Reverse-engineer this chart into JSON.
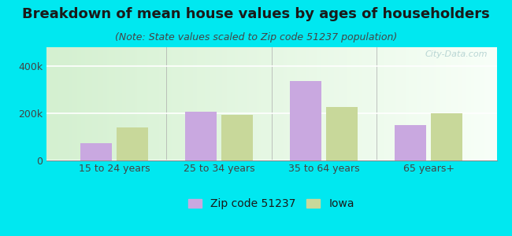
{
  "title": "Breakdown of mean house values by ages of householders",
  "subtitle": "(Note: State values scaled to Zip code 51237 population)",
  "categories": [
    "15 to 24 years",
    "25 to 34 years",
    "35 to 64 years",
    "65 years+"
  ],
  "zip_values": [
    75000,
    207000,
    335000,
    150000
  ],
  "iowa_values": [
    140000,
    192000,
    228000,
    200000
  ],
  "zip_color": "#c9a8e0",
  "iowa_color": "#c8d89a",
  "background_outer": "#00e8f0",
  "background_inner_left": "#d4f0d0",
  "background_inner_right": "#f8fff8",
  "yticks": [
    0,
    200000,
    400000
  ],
  "ytick_labels": [
    "0",
    "200k",
    "400k"
  ],
  "ylim": [
    0,
    480000
  ],
  "legend_zip_label": "Zip code 51237",
  "legend_iowa_label": "Iowa",
  "title_fontsize": 13,
  "subtitle_fontsize": 9,
  "axis_label_fontsize": 9,
  "legend_fontsize": 10,
  "watermark": "City-Data.com",
  "bar_width": 0.3,
  "bar_gap": 0.04
}
